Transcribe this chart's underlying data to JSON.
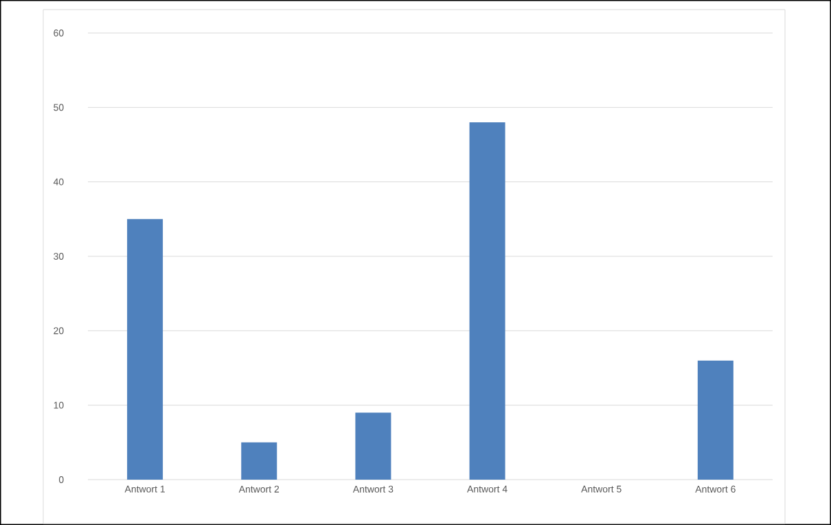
{
  "chart_data": {
    "type": "bar",
    "categories": [
      "Antwort 1",
      "Antwort 2",
      "Antwort 3",
      "Antwort 4",
      "Antwort 5",
      "Antwort 6"
    ],
    "values": [
      35,
      5,
      9,
      48,
      0,
      16
    ],
    "color": "#4f81bd",
    "ylim": [
      0,
      60
    ],
    "yticks": [
      0,
      10,
      20,
      30,
      40,
      50,
      60
    ],
    "grid": "y"
  }
}
